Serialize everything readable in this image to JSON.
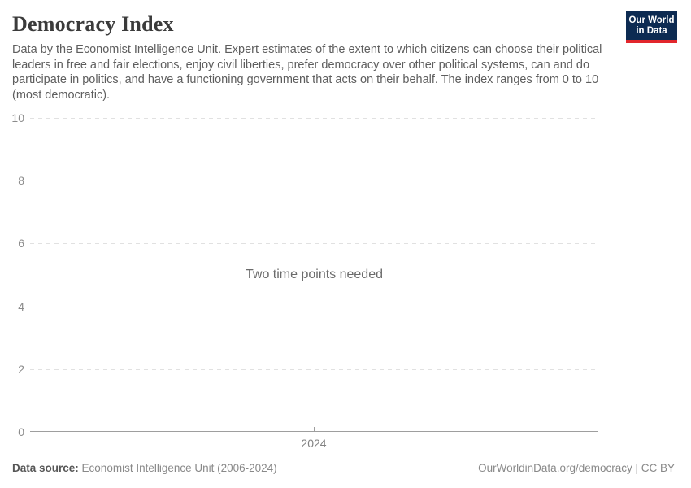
{
  "header": {
    "title": "Democracy Index",
    "subtitle": "Data by the Economist Intelligence Unit. Expert estimates of the extent to which citizens can choose their political leaders in free and fair elections, enjoy civil liberties, prefer democracy over other political systems, can and do participate in politics, and have a functioning government that acts on their behalf. The index ranges from 0 to 10 (most democratic).",
    "logo": {
      "line1": "Our World",
      "line2": "in Data",
      "bg_color": "#0d2b52",
      "bar_color": "#e2262c"
    }
  },
  "chart_data": {
    "type": "line",
    "title": "Democracy Index",
    "series": [],
    "empty_message": "Two time points needed",
    "x_ticks": [
      "2024"
    ],
    "y_ticks": [
      10,
      8,
      6,
      4,
      2,
      0
    ],
    "ylim": [
      0,
      10
    ],
    "grid": "horizontal dashed gridlines, solid baseline at 0",
    "legend": "none"
  },
  "footer": {
    "source_label": "Data source:",
    "source_value": "Economist Intelligence Unit (2006-2024)",
    "attribution": "OurWorldinData.org/democracy | CC BY"
  },
  "colors": {
    "grid": "#e1e1e1",
    "axis": "#9e9e9e",
    "muted_text": "#8b8b8b",
    "title_text": "#3b3b3b",
    "logo_navy": "#0d2b52",
    "logo_red": "#e2262c"
  }
}
